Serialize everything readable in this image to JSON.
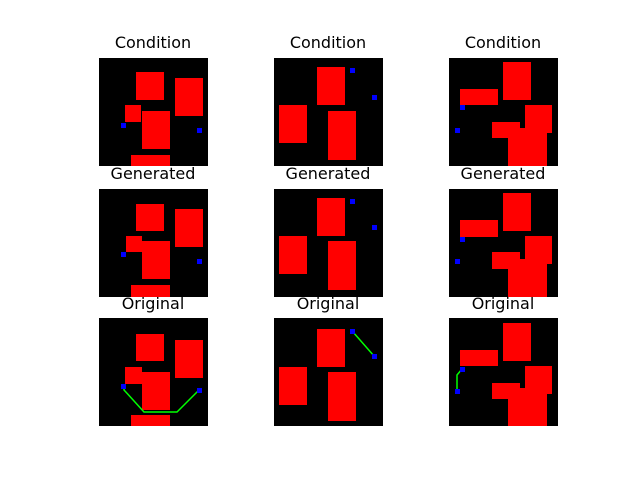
{
  "colors": {
    "background": "#000000",
    "block": "#ff0000",
    "point": "#0000ff",
    "path": "#00ff00"
  },
  "rows": [
    {
      "title": "Condition"
    },
    {
      "title": "Generated"
    },
    {
      "title": "Original"
    }
  ]
}
